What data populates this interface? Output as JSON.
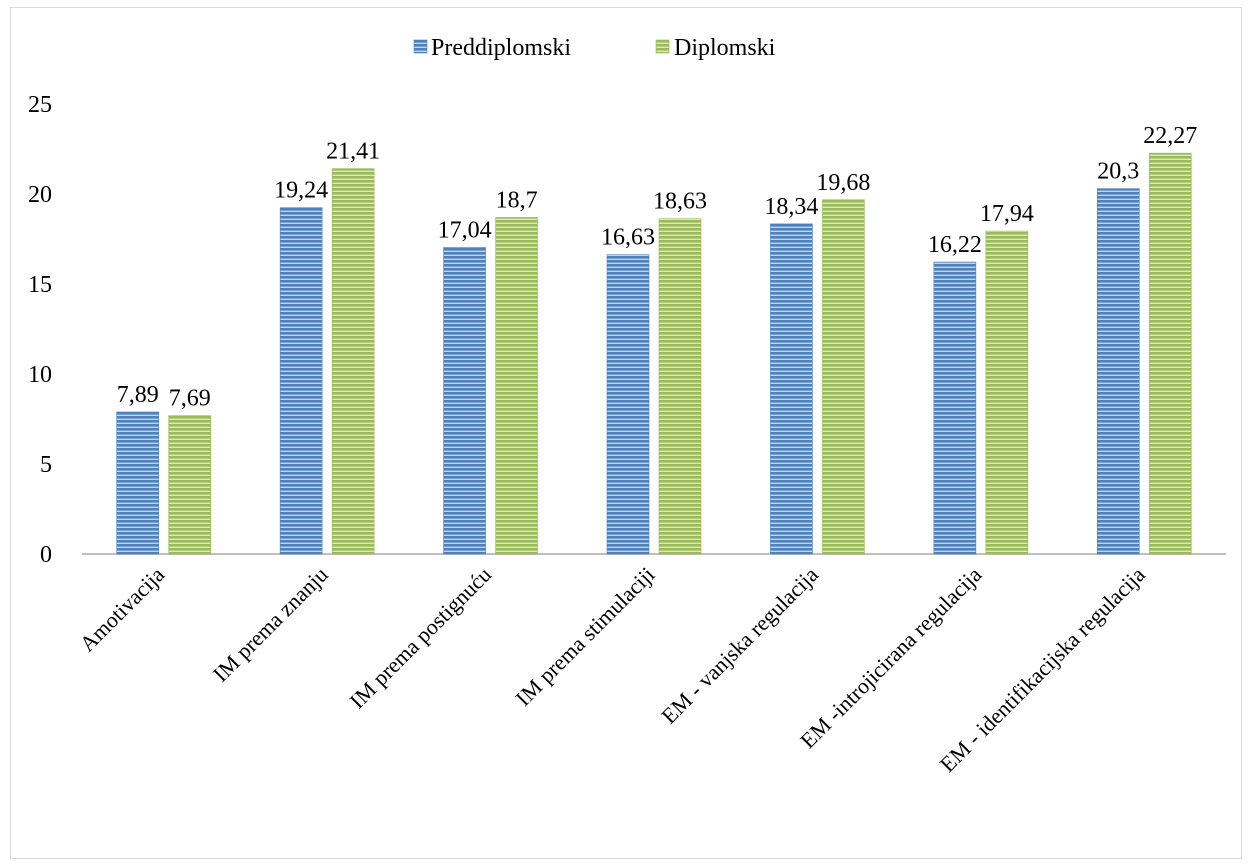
{
  "chart_data": {
    "type": "bar",
    "title": "",
    "xlabel": "",
    "ylabel": "",
    "ylim": [
      0,
      25
    ],
    "yticks": [
      0,
      5,
      10,
      15,
      20,
      25
    ],
    "grid": false,
    "legend_position": "top",
    "categories": [
      "Amotivacija",
      "IM prema znanju",
      "IM prema postignuću",
      "IM prema stimulaciji",
      "EM - vanjska regulacija",
      "EM -introjicirana regulacija",
      "EM - identifikacijska regulacija"
    ],
    "series": [
      {
        "name": "Preddiplomski",
        "color": "#4f81bd",
        "values": [
          7.89,
          19.24,
          17.04,
          16.63,
          18.34,
          16.22,
          20.3
        ],
        "labels": [
          "7,89",
          "19,24",
          "17,04",
          "16,63",
          "18,34",
          "16,22",
          "20,3"
        ]
      },
      {
        "name": "Diplomski",
        "color": "#9bbb59",
        "values": [
          7.69,
          21.41,
          18.7,
          18.63,
          19.68,
          17.94,
          22.27
        ],
        "labels": [
          "7,69",
          "21,41",
          "18,7",
          "18,63",
          "19,68",
          "17,94",
          "22,27"
        ]
      }
    ]
  }
}
